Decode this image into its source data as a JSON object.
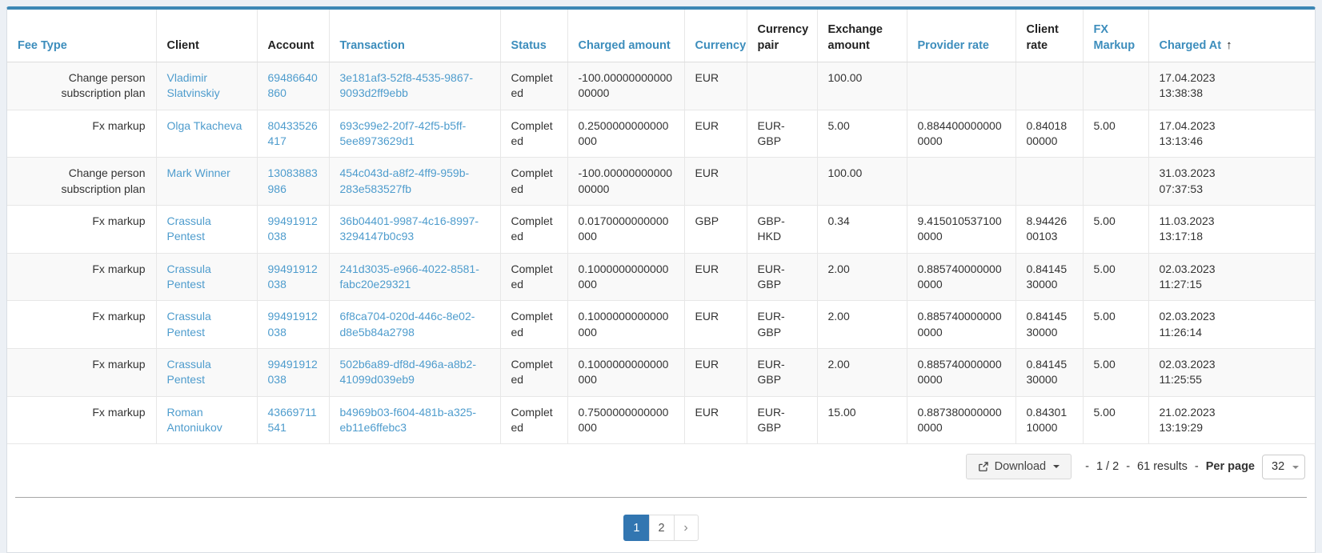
{
  "colors": {
    "accent_bar": "#3c87b5",
    "header_link": "#3c8dbc",
    "body_link": "#4e9ccd",
    "active_page_bg": "#3276b1",
    "stripe_row_bg": "#f9f9f9",
    "page_bg": "#ecf0f5"
  },
  "table": {
    "columns": [
      {
        "key": "fee_type",
        "label": "Fee Type",
        "sortable": true,
        "align": "right"
      },
      {
        "key": "client",
        "label": "Client",
        "sortable": false,
        "link": true
      },
      {
        "key": "account",
        "label": "Account",
        "sortable": false,
        "link": true
      },
      {
        "key": "transaction",
        "label": "Transaction",
        "sortable": true,
        "link": true
      },
      {
        "key": "status",
        "label": "Status",
        "sortable": true
      },
      {
        "key": "charged_amount",
        "label": "Charged amount",
        "sortable": true
      },
      {
        "key": "currency",
        "label": "Currency",
        "sortable": true
      },
      {
        "key": "currency_pair",
        "label": "Currency pair",
        "sortable": false
      },
      {
        "key": "exchange_amount",
        "label": "Exchange amount",
        "sortable": false
      },
      {
        "key": "provider_rate",
        "label": "Provider rate",
        "sortable": true
      },
      {
        "key": "client_rate",
        "label": "Client rate",
        "sortable": false
      },
      {
        "key": "fx_markup",
        "label": "FX Markup",
        "sortable": true
      },
      {
        "key": "charged_at",
        "label": "Charged At",
        "sortable": true,
        "sort_direction": "asc",
        "sort_icon": "↑",
        "parts": [
          "charged_date",
          "charged_time"
        ]
      }
    ],
    "rows": [
      {
        "fee_type": "Change person subscription plan",
        "client": "Vladimir Slatvinskiy",
        "account": "69486640860",
        "transaction": "3e181af3-52f8-4535-9867-9093d2ff9ebb",
        "status": "Completed",
        "charged_amount": "-100.0000000000000000",
        "currency": "EUR",
        "currency_pair": "",
        "exchange_amount": "100.00",
        "provider_rate": "",
        "client_rate": "",
        "fx_markup": "",
        "charged_date": "17.04.2023",
        "charged_time": "13:38:38"
      },
      {
        "fee_type": "Fx markup",
        "client": "Olga Tkacheva",
        "account": "80433526417",
        "transaction": "693c99e2-20f7-42f5-b5ff-5ee8973629d1",
        "status": "Completed",
        "charged_amount": "0.2500000000000000",
        "currency": "EUR",
        "currency_pair": "EUR-GBP",
        "exchange_amount": "5.00",
        "provider_rate": "0.8844000000000000",
        "client_rate": "0.8401800000",
        "fx_markup": "5.00",
        "charged_date": "17.04.2023",
        "charged_time": "13:13:46"
      },
      {
        "fee_type": "Change person subscription plan",
        "client": "Mark Winner",
        "account": "13083883986",
        "transaction": "454c043d-a8f2-4ff9-959b-283e583527fb",
        "status": "Completed",
        "charged_amount": "-100.0000000000000000",
        "currency": "EUR",
        "currency_pair": "",
        "exchange_amount": "100.00",
        "provider_rate": "",
        "client_rate": "",
        "fx_markup": "",
        "charged_date": "31.03.2023",
        "charged_time": "07:37:53"
      },
      {
        "fee_type": "Fx markup",
        "client": "Crassula Pentest",
        "account": "99491912038",
        "transaction": "36b04401-9987-4c16-8997-3294147b0c93",
        "status": "Completed",
        "charged_amount": "0.0170000000000000",
        "currency": "GBP",
        "currency_pair": "GBP-HKD",
        "exchange_amount": "0.34",
        "provider_rate": "9.4150105371000000",
        "client_rate": "8.9442600103",
        "fx_markup": "5.00",
        "charged_date": "11.03.2023",
        "charged_time": "13:17:18"
      },
      {
        "fee_type": "Fx markup",
        "client": "Crassula Pentest",
        "account": "99491912038",
        "transaction": "241d3035-e966-4022-8581-fabc20e29321",
        "status": "Completed",
        "charged_amount": "0.1000000000000000",
        "currency": "EUR",
        "currency_pair": "EUR-GBP",
        "exchange_amount": "2.00",
        "provider_rate": "0.8857400000000000",
        "client_rate": "0.8414530000",
        "fx_markup": "5.00",
        "charged_date": "02.03.2023",
        "charged_time": "11:27:15"
      },
      {
        "fee_type": "Fx markup",
        "client": "Crassula Pentest",
        "account": "99491912038",
        "transaction": "6f8ca704-020d-446c-8e02-d8e5b84a2798",
        "status": "Completed",
        "charged_amount": "0.1000000000000000",
        "currency": "EUR",
        "currency_pair": "EUR-GBP",
        "exchange_amount": "2.00",
        "provider_rate": "0.8857400000000000",
        "client_rate": "0.8414530000",
        "fx_markup": "5.00",
        "charged_date": "02.03.2023",
        "charged_time": "11:26:14"
      },
      {
        "fee_type": "Fx markup",
        "client": "Crassula Pentest",
        "account": "99491912038",
        "transaction": "502b6a89-df8d-496a-a8b2-41099d039eb9",
        "status": "Completed",
        "charged_amount": "0.1000000000000000",
        "currency": "EUR",
        "currency_pair": "EUR-GBP",
        "exchange_amount": "2.00",
        "provider_rate": "0.8857400000000000",
        "client_rate": "0.8414530000",
        "fx_markup": "5.00",
        "charged_date": "02.03.2023",
        "charged_time": "11:25:55"
      },
      {
        "fee_type": "Fx markup",
        "client": "Roman Antoniukov",
        "account": "43669711541",
        "transaction": "b4969b03-f604-481b-a325-eb11e6ffebc3",
        "status": "Completed",
        "charged_amount": "0.7500000000000000",
        "currency": "EUR",
        "currency_pair": "EUR-GBP",
        "exchange_amount": "15.00",
        "provider_rate": "0.8873800000000000",
        "client_rate": "0.8430110000",
        "fx_markup": "5.00",
        "charged_date": "21.02.2023",
        "charged_time": "13:19:29"
      }
    ]
  },
  "footer": {
    "download_label": "Download",
    "separator": "-",
    "page_indicator": "1 / 2",
    "results_text": "61 results",
    "per_page_label": "Per page",
    "per_page_value": "32"
  },
  "pagination": {
    "pages": [
      "1",
      "2"
    ],
    "active_page": "1",
    "next_label": "›"
  }
}
